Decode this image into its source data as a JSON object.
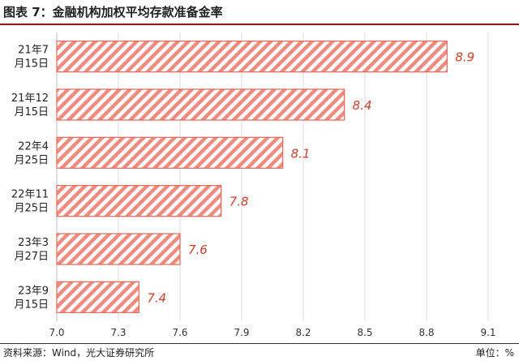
{
  "title": "图表 7：金融机构加权平均存款准备金率",
  "source": "资料来源：Wind，光大证券研究所",
  "unit": "单位：%",
  "colors": {
    "bar_stroke": "#e0675a",
    "bar_hatch": "#ef8c80",
    "label": "#c6402a",
    "title_rule": "#b20a1b",
    "grid": "#dcdcdc"
  },
  "chart_data": {
    "type": "bar",
    "orientation": "horizontal",
    "categories": [
      [
        "21年7",
        "月15日"
      ],
      [
        "21年12",
        "月15日"
      ],
      [
        "22年4",
        "月25日"
      ],
      [
        "22年11",
        "月25日"
      ],
      [
        "23年3",
        "月27日"
      ],
      [
        "23年9",
        "月15日"
      ]
    ],
    "values": [
      8.9,
      8.4,
      8.1,
      7.8,
      7.6,
      7.4
    ],
    "value_labels": [
      "8.9",
      "8.4",
      "8.1",
      "7.8",
      "7.6",
      "7.4"
    ],
    "xlim": [
      7.0,
      9.1
    ],
    "xticks": [
      "7.0",
      "7.3",
      "7.6",
      "7.9",
      "8.2",
      "8.5",
      "8.8",
      "9.1"
    ],
    "grid": "vertical",
    "fill": "diagonal-hatch"
  }
}
